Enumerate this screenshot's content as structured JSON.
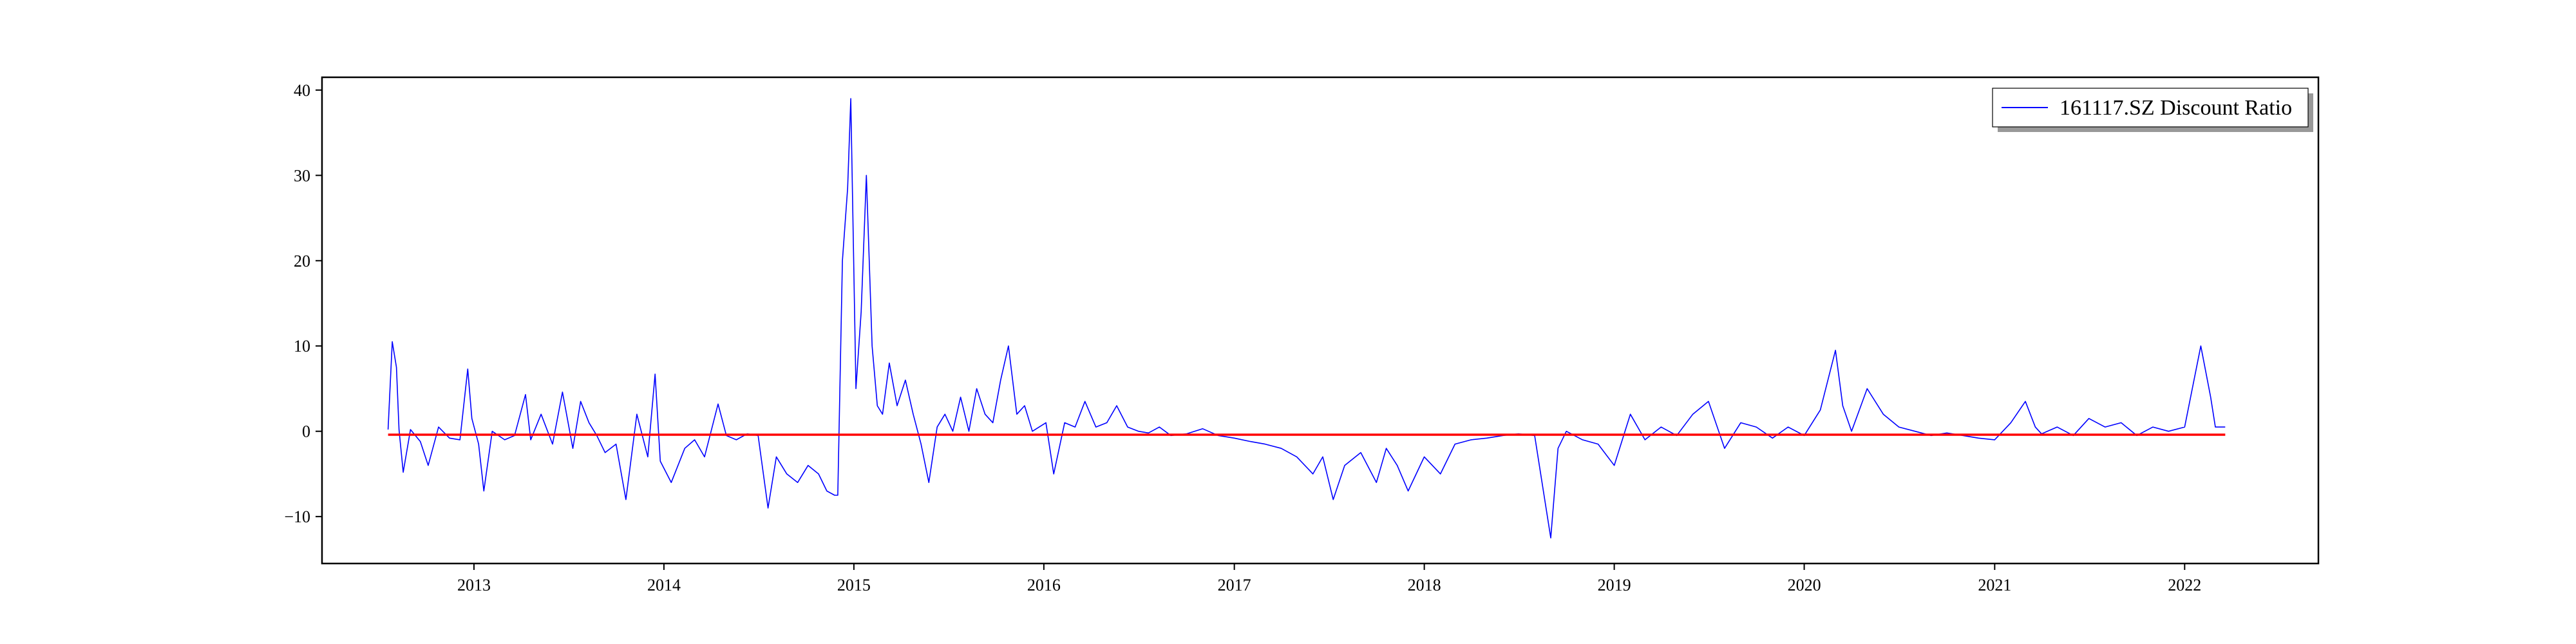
{
  "chart_data": {
    "type": "line",
    "title": "",
    "xlabel": "",
    "ylabel": "",
    "x_tick_labels": [
      "2013",
      "2014",
      "2015",
      "2016",
      "2017",
      "2018",
      "2019",
      "2020",
      "2021",
      "2022"
    ],
    "y_ticks": [
      -10,
      0,
      10,
      20,
      30,
      40
    ],
    "xlim": [
      "2012-03-15",
      "2022-09-15"
    ],
    "ylim": [
      -15.5,
      41.5
    ],
    "grid": false,
    "legend": {
      "placement": "top-right"
    },
    "series": [
      {
        "name": "161117.SZ Discount Ratio",
        "color": "#0000ff",
        "x": [
          "2012-07-20",
          "2012-07-28",
          "2012-08-05",
          "2012-08-10",
          "2012-08-18",
          "2012-09-01",
          "2012-09-20",
          "2012-10-05",
          "2012-10-25",
          "2012-11-15",
          "2012-12-05",
          "2012-12-20",
          "2012-12-28",
          "2013-01-10",
          "2013-01-20",
          "2013-02-05",
          "2013-03-01",
          "2013-03-20",
          "2013-04-10",
          "2013-04-20",
          "2013-05-10",
          "2013-06-01",
          "2013-06-20",
          "2013-07-10",
          "2013-07-25",
          "2013-08-10",
          "2013-08-25",
          "2013-09-10",
          "2013-10-01",
          "2013-10-20",
          "2013-11-10",
          "2013-12-01",
          "2013-12-15",
          "2013-12-25",
          "2014-01-15",
          "2014-02-10",
          "2014-03-01",
          "2014-03-20",
          "2014-04-15",
          "2014-05-01",
          "2014-05-20",
          "2014-06-10",
          "2014-07-01",
          "2014-07-20",
          "2014-08-05",
          "2014-08-25",
          "2014-09-15",
          "2014-10-05",
          "2014-10-25",
          "2014-11-10",
          "2014-11-25",
          "2014-12-01",
          "2014-12-10",
          "2014-12-20",
          "2014-12-26",
          "2015-01-05",
          "2015-01-15",
          "2015-01-25",
          "2015-02-05",
          "2015-02-15",
          "2015-02-25",
          "2015-03-10",
          "2015-03-25",
          "2015-04-10",
          "2015-04-25",
          "2015-05-10",
          "2015-05-25",
          "2015-06-10",
          "2015-06-25",
          "2015-07-10",
          "2015-07-25",
          "2015-08-10",
          "2015-08-25",
          "2015-09-10",
          "2015-09-25",
          "2015-10-10",
          "2015-10-25",
          "2015-11-10",
          "2015-11-25",
          "2015-12-10",
          "2016-01-05",
          "2016-01-20",
          "2016-02-10",
          "2016-03-01",
          "2016-03-20",
          "2016-04-10",
          "2016-05-01",
          "2016-05-20",
          "2016-06-10",
          "2016-07-01",
          "2016-07-20",
          "2016-08-10",
          "2016-09-01",
          "2016-10-01",
          "2016-11-01",
          "2016-12-01",
          "2017-01-01",
          "2017-02-01",
          "2017-03-01",
          "2017-04-01",
          "2017-05-01",
          "2017-06-01",
          "2017-06-20",
          "2017-07-10",
          "2017-08-01",
          "2017-09-01",
          "2017-10-01",
          "2017-10-20",
          "2017-11-10",
          "2017-12-01",
          "2018-01-01",
          "2018-02-01",
          "2018-03-01",
          "2018-04-01",
          "2018-05-01",
          "2018-06-01",
          "2018-07-01",
          "2018-08-01",
          "2018-09-01",
          "2018-09-15",
          "2018-10-01",
          "2018-11-01",
          "2018-12-01",
          "2019-01-01",
          "2019-02-01",
          "2019-03-01",
          "2019-04-01",
          "2019-05-01",
          "2019-06-01",
          "2019-07-01",
          "2019-08-01",
          "2019-09-01",
          "2019-10-01",
          "2019-11-01",
          "2019-12-01",
          "2020-01-01",
          "2020-02-01",
          "2020-03-01",
          "2020-03-15",
          "2020-04-01",
          "2020-05-01",
          "2020-06-01",
          "2020-07-01",
          "2020-08-01",
          "2020-09-01",
          "2020-10-01",
          "2020-11-01",
          "2020-12-01",
          "2021-01-01",
          "2021-02-01",
          "2021-03-01",
          "2021-03-20",
          "2021-04-01",
          "2021-05-01",
          "2021-06-01",
          "2021-07-01",
          "2021-08-01",
          "2021-09-01",
          "2021-10-01",
          "2021-11-01",
          "2021-12-01",
          "2022-01-01",
          "2022-02-01",
          "2022-02-20",
          "2022-03-01",
          "2022-03-20"
        ],
        "y": [
          0.2,
          10.5,
          7.5,
          0.2,
          -4.8,
          0.2,
          -1.2,
          -4.0,
          0.5,
          -0.8,
          -1.0,
          7.3,
          1.5,
          -1.5,
          -7.0,
          0.0,
          -1.0,
          -0.5,
          4.3,
          -1.0,
          2.0,
          -1.5,
          4.6,
          -2.0,
          3.5,
          1.0,
          -0.5,
          -2.5,
          -1.5,
          -8.0,
          2.0,
          -3.0,
          6.7,
          -3.5,
          -6.0,
          -2.0,
          -1.0,
          -3.0,
          3.2,
          -0.5,
          -1.0,
          -0.3,
          -0.5,
          -9.0,
          -3.0,
          -5.0,
          -6.0,
          -4.0,
          -5.0,
          -7.0,
          -7.5,
          -7.5,
          20.0,
          28.5,
          39.0,
          5.0,
          14.0,
          30.0,
          10.0,
          3.0,
          2.0,
          8.0,
          3.0,
          6.0,
          2.0,
          -1.5,
          -6.0,
          0.5,
          2.0,
          0.0,
          4.0,
          0.0,
          5.0,
          2.0,
          1.0,
          6.0,
          10.0,
          2.0,
          3.0,
          0.0,
          1.0,
          -5.0,
          1.0,
          0.5,
          3.5,
          0.5,
          1.0,
          3.0,
          0.5,
          0.0,
          -0.2,
          0.5,
          -0.5,
          -0.3,
          0.3,
          -0.5,
          -0.8,
          -1.2,
          -1.5,
          -2.0,
          -3.0,
          -5.0,
          -3.0,
          -8.0,
          -4.0,
          -2.5,
          -6.0,
          -2.0,
          -4.0,
          -7.0,
          -3.0,
          -5.0,
          -1.5,
          -1.0,
          -0.8,
          -0.5,
          -0.3,
          -0.5,
          -12.5,
          -2.0,
          0.0,
          -1.0,
          -1.5,
          -4.0,
          2.0,
          -1.0,
          0.5,
          -0.5,
          2.0,
          3.5,
          -2.0,
          1.0,
          0.5,
          -0.8,
          0.5,
          -0.5,
          2.5,
          9.5,
          3.0,
          0.0,
          5.0,
          2.0,
          0.5,
          0.0,
          -0.5,
          -0.2,
          -0.5,
          -0.8,
          -1.0,
          1.0,
          3.5,
          0.5,
          -0.3,
          0.5,
          -0.5,
          1.5,
          0.5,
          1.0,
          -0.5,
          0.5,
          0.0,
          0.5,
          10.0,
          4.0,
          0.5,
          0.5
        ]
      }
    ],
    "reference_line": {
      "color": "#ff0000",
      "x": [
        "2012-07-20",
        "2022-03-20"
      ],
      "y": [
        -0.4,
        -0.4
      ]
    }
  }
}
